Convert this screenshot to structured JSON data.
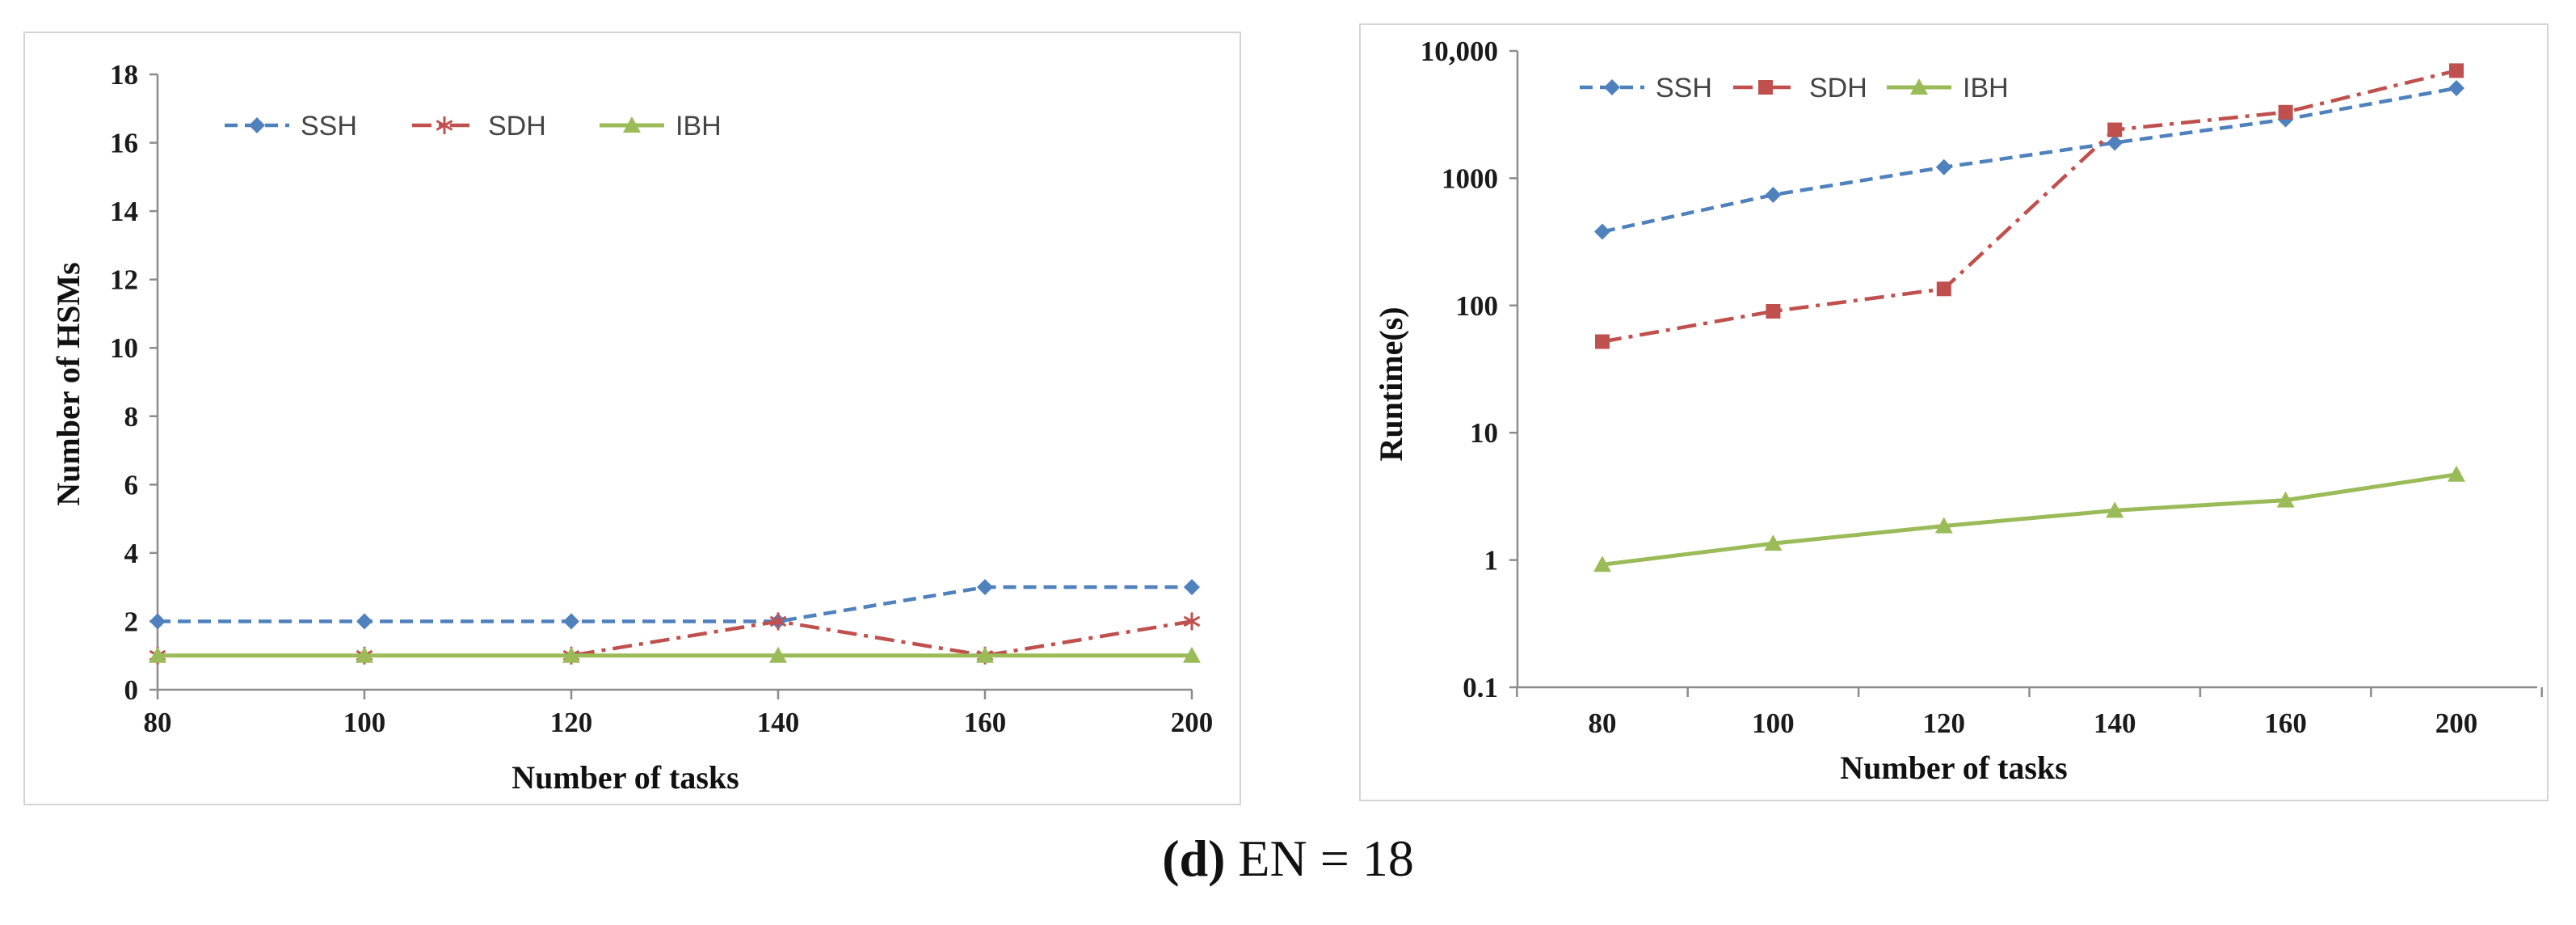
{
  "caption": {
    "letter": "(d)",
    "text": "EN = 18"
  },
  "colors": {
    "SSH": "#4f81bd",
    "SDH": "#c0504d",
    "IBH": "#9bbb59"
  },
  "chart_data": [
    {
      "type": "line",
      "title": "",
      "xlabel": "Number of tasks",
      "ylabel": "Number of HSMs",
      "categories": [
        "80",
        "100",
        "120",
        "140",
        "160",
        "200"
      ],
      "x_tick_labels": [
        "80",
        "100",
        "120",
        "140",
        "160",
        "200"
      ],
      "y_tick_labels": [
        "0",
        "2",
        "4",
        "6",
        "8",
        "10",
        "12",
        "14",
        "16",
        "18"
      ],
      "ylim": [
        0,
        18
      ],
      "yscale": "linear",
      "legend_position": "top-left",
      "grid": false,
      "series": [
        {
          "name": "SSH",
          "values": [
            2,
            2,
            2,
            2,
            3,
            3
          ],
          "marker": "diamond",
          "line": "dashed"
        },
        {
          "name": "SDH",
          "values": [
            1,
            1,
            1,
            2,
            1,
            2
          ],
          "marker": "star",
          "line": "dash-dot"
        },
        {
          "name": "IBH",
          "values": [
            1,
            1,
            1,
            1,
            1,
            1
          ],
          "marker": "triangle",
          "line": "solid"
        }
      ]
    },
    {
      "type": "line",
      "title": "",
      "xlabel": "Number of tasks",
      "ylabel": "Runtime(s)",
      "categories": [
        "80",
        "100",
        "120",
        "140",
        "160",
        "200"
      ],
      "x_tick_labels": [
        "80",
        "100",
        "120",
        "140",
        "160",
        "200"
      ],
      "y_tick_labels": [
        "0.1",
        "1",
        "10",
        "100",
        "1000",
        "10,000"
      ],
      "ylim": [
        0.1,
        10000
      ],
      "yscale": "log",
      "legend_position": "top-left",
      "grid": false,
      "series": [
        {
          "name": "SSH",
          "values": [
            380,
            740,
            1220,
            1900,
            2900,
            5100
          ],
          "marker": "diamond",
          "line": "dashed"
        },
        {
          "name": "SDH",
          "values": [
            52,
            90,
            135,
            2400,
            3300,
            7000
          ],
          "marker": "square",
          "line": "dash-dot"
        },
        {
          "name": "IBH",
          "values": [
            0.92,
            1.35,
            1.85,
            2.45,
            2.95,
            4.7
          ],
          "marker": "triangle",
          "line": "solid"
        }
      ]
    }
  ]
}
